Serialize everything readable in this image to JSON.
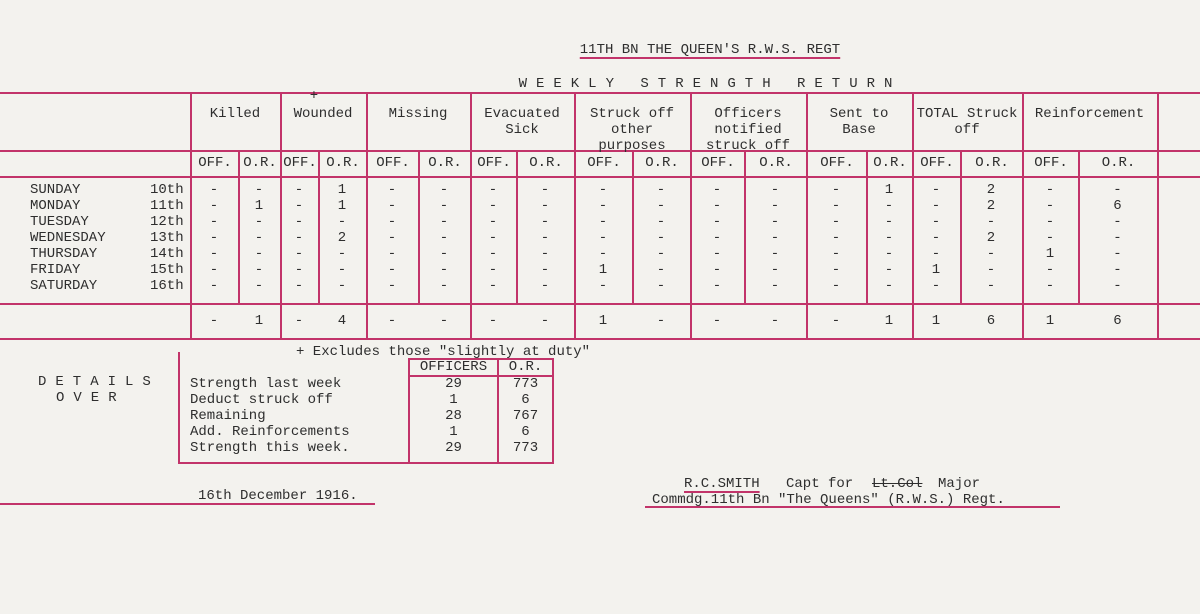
{
  "header": {
    "title": "11TH BN THE QUEEN'S R.W.S. REGT",
    "subtitle": "WEEKLY STRENGTH RETURN"
  },
  "table": {
    "groups": [
      "Killed",
      "Wounded",
      "Missing",
      "Evacuated Sick",
      "Struck off other purposes",
      "Officers notified struck off",
      "Sent to Base",
      "TOTAL Struck off",
      "Reinforcement"
    ],
    "wounded_mark": "+",
    "sub_headers": [
      "OFF.",
      "O.R."
    ],
    "rows": [
      {
        "day": "SUNDAY",
        "date": "10th",
        "values": [
          "-",
          "-",
          "-",
          1,
          "-",
          "-",
          "-",
          "-",
          "-",
          "-",
          "-",
          "-",
          "-",
          1,
          "-",
          2,
          "-",
          "-"
        ]
      },
      {
        "day": "MONDAY",
        "date": "11th",
        "values": [
          "-",
          1,
          "-",
          1,
          "-",
          "-",
          "-",
          "-",
          "-",
          "-",
          "-",
          "-",
          "-",
          "-",
          "-",
          2,
          "-",
          6
        ]
      },
      {
        "day": "TUESDAY",
        "date": "12th",
        "values": [
          "-",
          "-",
          "-",
          "-",
          "-",
          "-",
          "-",
          "-",
          "-",
          "-",
          "-",
          "-",
          "-",
          "-",
          "-",
          "-",
          "-",
          "-"
        ]
      },
      {
        "day": "WEDNESDAY",
        "date": "13th",
        "values": [
          "-",
          "-",
          "-",
          2,
          "-",
          "-",
          "-",
          "-",
          "-",
          "-",
          "-",
          "-",
          "-",
          "-",
          "-",
          2,
          "-",
          "-"
        ]
      },
      {
        "day": "THURSDAY",
        "date": "14th",
        "values": [
          "-",
          "-",
          "-",
          "-",
          "-",
          "-",
          "-",
          "-",
          "-",
          "-",
          "-",
          "-",
          "-",
          "-",
          "-",
          "-",
          1,
          "-"
        ]
      },
      {
        "day": "FRIDAY",
        "date": "15th",
        "values": [
          "-",
          "-",
          "-",
          "-",
          "-",
          "-",
          "-",
          "-",
          1,
          "-",
          "-",
          "-",
          "-",
          "-",
          1,
          "-",
          "-",
          "-"
        ]
      },
      {
        "day": "SATURDAY",
        "date": "16th",
        "values": [
          "-",
          "-",
          "-",
          "-",
          "-",
          "-",
          "-",
          "-",
          "-",
          "-",
          "-",
          "-",
          "-",
          "-",
          "-",
          "-",
          "-",
          "-"
        ]
      }
    ],
    "totals": [
      "-",
      1,
      "-",
      4,
      "-",
      "-",
      "-",
      "-",
      1,
      "-",
      "-",
      "-",
      "-",
      1,
      1,
      6,
      1,
      6
    ]
  },
  "note": "+ Excludes those \"slightly at duty\"",
  "details": {
    "line1": "DETAILS",
    "line2": "OVER"
  },
  "strength": {
    "headers": [
      "OFFICERS",
      "O.R."
    ],
    "rows": [
      [
        "Strength last week",
        29,
        773
      ],
      [
        "Deduct struck off",
        1,
        6
      ],
      [
        "Remaining",
        28,
        767
      ],
      [
        "Add. Reinforcements",
        1,
        6
      ],
      [
        "Strength this week.",
        29,
        773
      ]
    ]
  },
  "footer": {
    "date": "16th December 1916.",
    "signatory": "R.C.SMITH",
    "rank_prefix": "Capt for",
    "struck_rank": "Lt.Col",
    "rank": "Major",
    "command": "Commdg.11th Bn \"The Queens\" (R.W.S.) Regt."
  }
}
